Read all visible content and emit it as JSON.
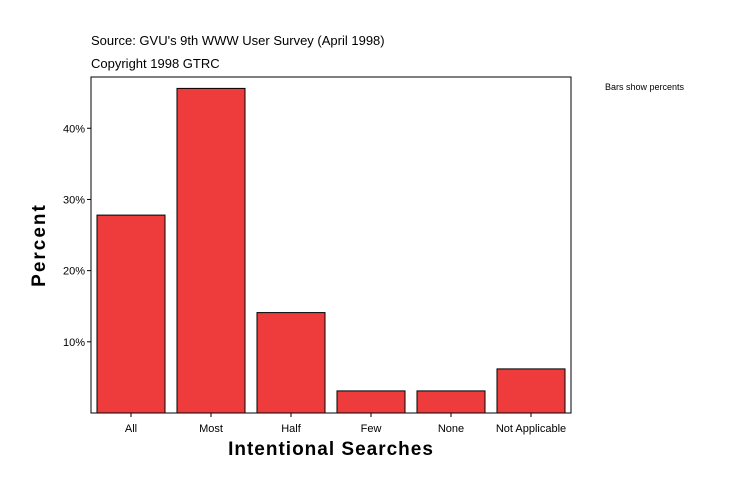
{
  "header": {
    "source": "Source: GVU's 9th WWW User Survey (April 1998)",
    "copyright": "Copyright 1998 GTRC"
  },
  "note": "Bars show percents",
  "chart_data": {
    "type": "bar",
    "categories": [
      "All",
      "Most",
      "Half",
      "Few",
      "None",
      "Not Applicable"
    ],
    "values": [
      27.8,
      45.6,
      14.1,
      3.1,
      3.1,
      6.2
    ],
    "xlabel": "Intentional Searches",
    "ylabel": "Percent",
    "yticks": [
      10,
      20,
      30,
      40
    ],
    "ytick_labels": [
      "10%",
      "20%",
      "30%",
      "40%"
    ],
    "ylim": [
      0,
      47.2
    ],
    "bar_color": "#ee3b3b",
    "grid": false,
    "legend": "none"
  }
}
